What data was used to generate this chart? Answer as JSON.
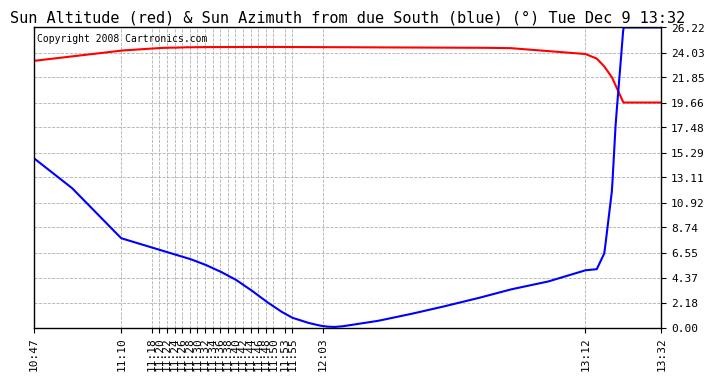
{
  "title": "Sun Altitude (red) & Sun Azimuth from due South (blue) (°) Tue Dec 9 13:32",
  "copyright": "Copyright 2008 Cartronics.com",
  "yticks": [
    0.0,
    2.18,
    4.37,
    6.55,
    8.74,
    10.92,
    13.11,
    15.29,
    17.48,
    19.66,
    21.85,
    24.03,
    26.22
  ],
  "xtick_labels": [
    "10:47",
    "11:10",
    "11:18",
    "11:20",
    "11:22",
    "11:24",
    "11:26",
    "11:28",
    "11:30",
    "11:32",
    "11:34",
    "11:36",
    "11:38",
    "11:40",
    "11:42",
    "11:44",
    "11:46",
    "11:48",
    "11:50",
    "11:53",
    "11:55",
    "12:03",
    "13:12",
    "13:32"
  ],
  "ylim": [
    0.0,
    26.22
  ],
  "background_color": "#ffffff",
  "grid_color": "#b0b0b0",
  "red_color": "#ff0000",
  "blue_color": "#0000ff",
  "title_fontsize": 11,
  "tick_fontsize": 8,
  "red_points": [
    [
      0,
      23.3
    ],
    [
      23,
      24.2
    ],
    [
      31,
      24.38
    ],
    [
      33,
      24.42
    ],
    [
      35,
      24.45
    ],
    [
      37,
      24.45
    ],
    [
      39,
      24.48
    ],
    [
      43,
      24.5
    ],
    [
      57,
      24.52
    ],
    [
      59,
      24.52
    ],
    [
      76,
      24.5
    ],
    [
      98,
      24.48
    ],
    [
      116,
      24.45
    ],
    [
      125,
      24.42
    ],
    [
      145,
      23.9
    ],
    [
      148,
      23.5
    ],
    [
      150,
      22.8
    ],
    [
      152,
      21.85
    ],
    [
      155,
      19.66
    ]
  ],
  "blue_points": [
    [
      0,
      14.8
    ],
    [
      10,
      12.2
    ],
    [
      20,
      8.8
    ],
    [
      23,
      7.8
    ],
    [
      31,
      7.0
    ],
    [
      33,
      6.8
    ],
    [
      37,
      6.4
    ],
    [
      41,
      6.0
    ],
    [
      45,
      5.5
    ],
    [
      49,
      4.9
    ],
    [
      53,
      4.2
    ],
    [
      57,
      3.3
    ],
    [
      61,
      2.3
    ],
    [
      65,
      1.4
    ],
    [
      68,
      0.85
    ],
    [
      72,
      0.42
    ],
    [
      75,
      0.18
    ],
    [
      77,
      0.08
    ],
    [
      79,
      0.05
    ],
    [
      81,
      0.1
    ],
    [
      84,
      0.25
    ],
    [
      90,
      0.55
    ],
    [
      98,
      1.1
    ],
    [
      106,
      1.7
    ],
    [
      116,
      2.5
    ],
    [
      125,
      3.3
    ],
    [
      135,
      4.0
    ],
    [
      145,
      5.0
    ],
    [
      148,
      5.1
    ],
    [
      150,
      6.5
    ],
    [
      152,
      12.0
    ],
    [
      153,
      18.0
    ],
    [
      154,
      22.0
    ],
    [
      155,
      26.22
    ]
  ]
}
